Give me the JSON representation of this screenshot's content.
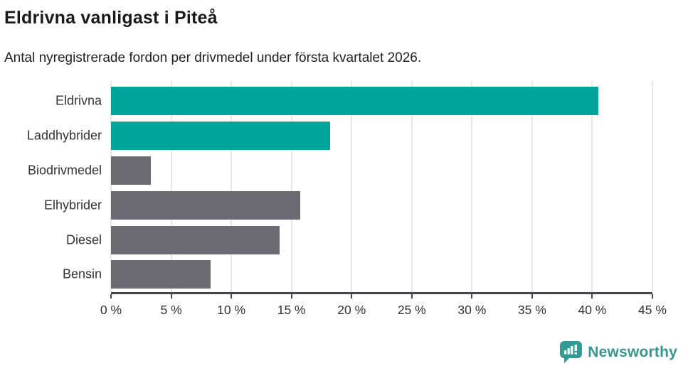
{
  "chart_data": {
    "type": "bar",
    "orientation": "horizontal",
    "title": "Eldrivna vanligast i Piteå",
    "subtitle": "Antal nyregistrerade fordon per drivmedel under första kvartalet 2026.",
    "categories": [
      "Eldrivna",
      "Laddhybrider",
      "Biodrivmedel",
      "Elhybrider",
      "Diesel",
      "Bensin"
    ],
    "values": [
      40.5,
      18.2,
      3.3,
      15.7,
      14.0,
      8.3
    ],
    "bar_colors": [
      "#00a49b",
      "#00a49b",
      "#6c6b73",
      "#6c6b73",
      "#6c6b73",
      "#6c6b73"
    ],
    "xlim": [
      0,
      45
    ],
    "x_tick_step": 5,
    "x_tick_labels": [
      "0 %",
      "5 %",
      "10 %",
      "15 %",
      "20 %",
      "25 %",
      "30 %",
      "35 %",
      "40 %",
      "45 %"
    ],
    "grid": "vertical",
    "legend": "none",
    "xlabel": "",
    "ylabel": ""
  },
  "colors": {
    "teal_bar": "#00a49b",
    "gray_bar": "#6c6b73",
    "axis_line": "#47464d",
    "gridline": "#e7e7e7",
    "title_text": "#1a1a1a",
    "label_text": "#333333"
  },
  "footer": {
    "brand": "Newsworthy",
    "brand_color": "#3a948e",
    "logo_icon": "bar-chart-speech-bubble-icon",
    "logo_icon_color": "#339b95"
  }
}
